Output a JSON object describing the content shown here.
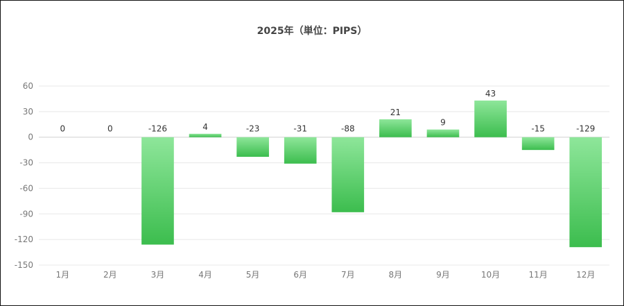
{
  "chart_data": {
    "type": "bar",
    "title": "2025年（単位：PIPS）",
    "categories": [
      "1月",
      "2月",
      "3月",
      "4月",
      "5月",
      "6月",
      "7月",
      "8月",
      "9月",
      "10月",
      "11月",
      "12月"
    ],
    "values": [
      0,
      0,
      -126,
      4,
      -23,
      -31,
      -88,
      21,
      9,
      43,
      -15,
      -129
    ],
    "ylim": [
      -150,
      60
    ],
    "yticks": [
      60,
      30,
      0,
      -30,
      -60,
      -90,
      -120,
      -150
    ],
    "grid": true,
    "legend": "none",
    "bar_color_top": "#8ee69a",
    "bar_color_bottom": "#3cbd4e"
  }
}
